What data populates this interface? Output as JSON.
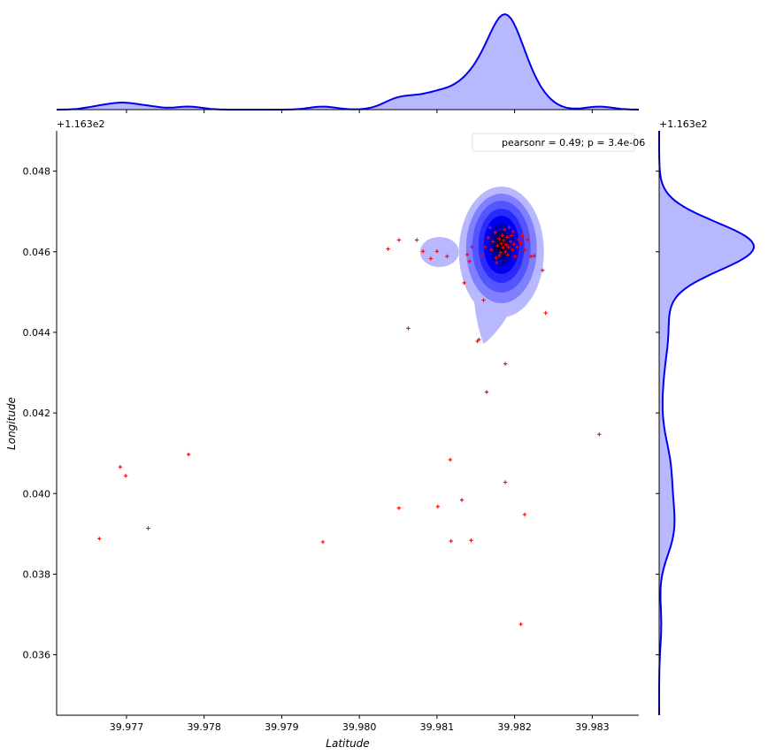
{
  "chart_data": {
    "type": "scatter",
    "xlabel": "Latitude",
    "ylabel": "Longitude",
    "xlim": [
      39.9761,
      39.9836
    ],
    "ylim": [
      116.3345,
      116.349
    ],
    "xticks": [
      "39.977",
      "39.978",
      "39.979",
      "39.980",
      "39.981",
      "39.982",
      "39.983"
    ],
    "xtick_values": [
      39.977,
      39.978,
      39.979,
      39.98,
      39.981,
      39.982,
      39.983
    ],
    "yticks": [
      "0.036",
      "0.038",
      "0.040",
      "0.042",
      "0.044",
      "0.046",
      "0.048"
    ],
    "ytick_values": [
      116.336,
      116.338,
      116.34,
      116.342,
      116.344,
      116.346,
      116.348
    ],
    "x_offset_label": "+1.163e2",
    "y_offset_label": "+1.163e2",
    "top_offset_label": "+1.163e2",
    "right_offset_label": "+1.163e2",
    "legend": {
      "text": "pearsonr = 0.49; p = 3.4e-06",
      "placement": "top-right"
    },
    "kde_center": {
      "x": 39.98183,
      "y": 116.34617
    },
    "colors": {
      "points": "#ff0000",
      "kde_line": "#0000ee",
      "kde_fill": "#b8b8ff"
    },
    "points": [
      [
        39.97665,
        116.33888
      ],
      [
        39.97692,
        116.34066
      ],
      [
        39.97699,
        116.34044
      ],
      [
        39.97728,
        116.33914
      ],
      [
        39.9778,
        116.34097
      ],
      [
        39.97953,
        116.3388
      ],
      [
        39.98037,
        116.34607
      ],
      [
        39.98051,
        116.34629
      ],
      [
        39.98063,
        116.3441
      ],
      [
        39.98074,
        116.34629
      ],
      [
        39.98082,
        116.34601
      ],
      [
        39.98092,
        116.34583
      ],
      [
        39.981,
        116.34601
      ],
      [
        39.98113,
        116.34589
      ],
      [
        39.98051,
        116.33964
      ],
      [
        39.98101,
        116.33968
      ],
      [
        39.98117,
        116.34084
      ],
      [
        39.98118,
        116.33882
      ],
      [
        39.98132,
        116.33984
      ],
      [
        39.98135,
        116.34523
      ],
      [
        39.98139,
        116.34593
      ],
      [
        39.98142,
        116.34576
      ],
      [
        39.98144,
        116.33884
      ],
      [
        39.98145,
        116.34612
      ],
      [
        39.98152,
        116.34378
      ],
      [
        39.98154,
        116.34382
      ],
      [
        39.9816,
        116.3448
      ],
      [
        39.98164,
        116.34252
      ],
      [
        39.98188,
        116.34322
      ],
      [
        39.98188,
        116.34028
      ],
      [
        39.98208,
        116.33676
      ],
      [
        39.98213,
        116.33948
      ],
      [
        39.98221,
        116.34588
      ],
      [
        39.98225,
        116.3459
      ],
      [
        39.98236,
        116.34554
      ],
      [
        39.9824,
        116.34448
      ],
      [
        39.98309,
        116.34147
      ],
      [
        39.98157,
        116.3459
      ],
      [
        39.98162,
        116.34612
      ],
      [
        39.98166,
        116.34635
      ],
      [
        39.9817,
        116.34605
      ],
      [
        39.98172,
        116.34625
      ],
      [
        39.98175,
        116.34648
      ],
      [
        39.98177,
        116.34573
      ],
      [
        39.98178,
        116.34615
      ],
      [
        39.9818,
        116.34632
      ],
      [
        39.98182,
        116.34598
      ],
      [
        39.98183,
        116.3462
      ],
      [
        39.98184,
        116.3464
      ],
      [
        39.98185,
        116.3461
      ],
      [
        39.98186,
        116.34628
      ],
      [
        39.98187,
        116.34655
      ],
      [
        39.98188,
        116.346
      ],
      [
        39.98189,
        116.34618
      ],
      [
        39.9819,
        116.34636
      ],
      [
        39.98191,
        116.34592
      ],
      [
        39.98192,
        116.34612
      ],
      [
        39.98193,
        116.3466
      ],
      [
        39.98195,
        116.34625
      ],
      [
        39.98196,
        116.3464
      ],
      [
        39.98197,
        116.34605
      ],
      [
        39.98199,
        116.34619
      ],
      [
        39.98201,
        116.34588
      ],
      [
        39.98203,
        116.34612
      ],
      [
        39.98205,
        116.3463
      ],
      [
        39.98208,
        116.34622
      ],
      [
        39.9821,
        116.3464
      ],
      [
        39.98213,
        116.34605
      ],
      [
        39.98217,
        116.3463
      ],
      [
        39.98168,
        116.3466
      ],
      [
        39.98176,
        116.34585
      ],
      [
        39.98198,
        116.3465
      ],
      [
        39.9818,
        116.3459
      ]
    ]
  }
}
